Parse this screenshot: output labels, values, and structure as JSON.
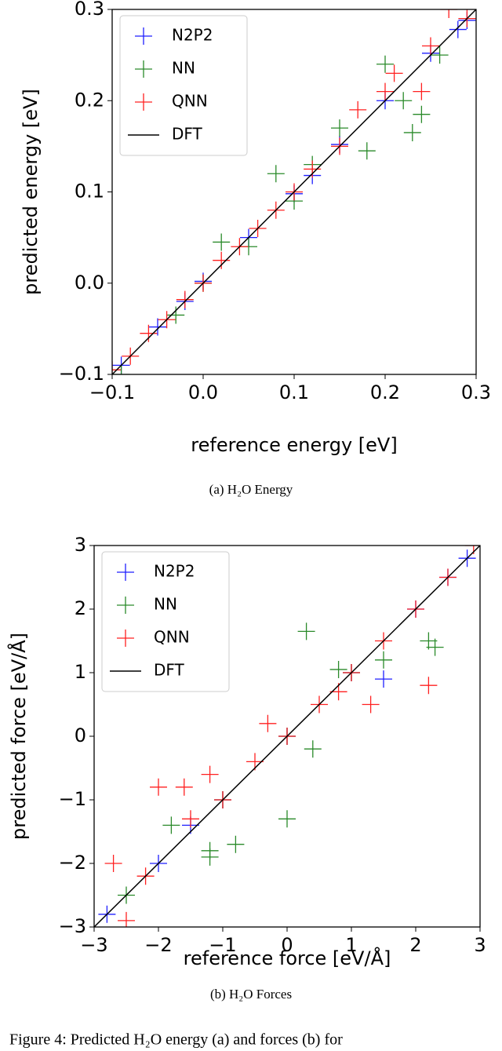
{
  "chart_data": [
    {
      "type": "scatter",
      "x_label": "reference energy [eV]",
      "y_label": "predicted energy [eV]",
      "caption": "(a) H₂O Energy",
      "xlim": [
        -0.1,
        0.3
      ],
      "ylim": [
        -0.1,
        0.3
      ],
      "xticks": [
        {
          "value": -0.1,
          "label": "−0.1"
        },
        {
          "value": 0,
          "label": "0.0"
        },
        0.1,
        0.2,
        0.3
      ],
      "yticks": [
        {
          "value": -0.1,
          "label": "−0.1"
        },
        {
          "value": 0,
          "label": "0.0"
        },
        0.1,
        0.2,
        0.3
      ],
      "legend": "upper left",
      "series": [
        {
          "name": "N2P2",
          "color": "#1f1fff",
          "x": [
            -0.09,
            -0.05,
            -0.02,
            0.0,
            0.05,
            0.1,
            0.12,
            0.15,
            0.2,
            0.25,
            0.28,
            0.29
          ],
          "y": [
            -0.09,
            -0.048,
            -0.02,
            0.002,
            0.05,
            0.098,
            0.118,
            0.152,
            0.2,
            0.252,
            0.278,
            0.288
          ]
        },
        {
          "name": "NN",
          "color": "#2a8a2a",
          "x": [
            -0.09,
            -0.03,
            0.0,
            0.02,
            0.05,
            0.08,
            0.1,
            0.12,
            0.15,
            0.18,
            0.2,
            0.22,
            0.23,
            0.24,
            0.26
          ],
          "y": [
            -0.1,
            -0.035,
            0.0,
            0.045,
            0.04,
            0.12,
            0.09,
            0.13,
            0.17,
            0.145,
            0.24,
            0.2,
            0.165,
            0.185,
            0.25
          ]
        },
        {
          "name": "QNN",
          "color": "#ff2020",
          "x": [
            -0.1,
            -0.08,
            -0.06,
            -0.04,
            -0.02,
            0.0,
            0.02,
            0.04,
            0.06,
            0.08,
            0.1,
            0.12,
            0.15,
            0.17,
            0.2,
            0.21,
            0.24,
            0.25,
            0.27,
            0.29
          ],
          "y": [
            -0.095,
            -0.08,
            -0.055,
            -0.04,
            -0.018,
            0.0,
            0.025,
            0.04,
            0.06,
            0.08,
            0.1,
            0.125,
            0.15,
            0.19,
            0.21,
            0.23,
            0.21,
            0.26,
            0.3,
            0.29
          ]
        },
        {
          "name": "DFT",
          "color": "#000000",
          "type": "line",
          "x": [
            -0.1,
            0.3
          ],
          "y": [
            -0.1,
            0.3
          ]
        }
      ]
    },
    {
      "type": "scatter",
      "x_label": "reference force [eV/Å]",
      "y_label": "predicted force [eV/Å]",
      "caption": "(b) H₂O Forces",
      "xlim": [
        -3,
        3
      ],
      "ylim": [
        -3,
        3
      ],
      "xticks": [
        {
          "value": -3,
          "label": "−3"
        },
        {
          "value": -2,
          "label": "−2"
        },
        {
          "value": -1,
          "label": "−1"
        },
        0,
        1,
        2,
        3
      ],
      "yticks": [
        {
          "value": -3,
          "label": "−3"
        },
        {
          "value": -2,
          "label": "−2"
        },
        {
          "value": -1,
          "label": "−1"
        },
        0,
        1,
        2,
        3
      ],
      "legend": "upper left",
      "series": [
        {
          "name": "N2P2",
          "color": "#1f1fff",
          "x": [
            -2.8,
            -2,
            -1.5,
            -1,
            0,
            1,
            1.5,
            2,
            2.5,
            2.8
          ],
          "y": [
            -2.8,
            -2,
            -1.4,
            -1,
            0,
            1,
            0.9,
            2,
            2.5,
            2.8
          ]
        },
        {
          "name": "NN",
          "color": "#2a8a2a",
          "x": [
            -2.5,
            -1.8,
            -1.2,
            -1.2,
            -1,
            -0.8,
            0,
            0,
            0.4,
            0.3,
            0.8,
            1,
            1.5,
            2.2,
            2.3
          ],
          "y": [
            -2.5,
            -1.4,
            -1.8,
            -1.9,
            -1,
            -1.7,
            -1.3,
            0,
            -0.2,
            1.65,
            1.05,
            1,
            1.2,
            1.5,
            1.4
          ]
        },
        {
          "name": "QNN",
          "color": "#ff2020",
          "x": [
            -2.7,
            -2.5,
            -2.2,
            -2,
            -1.6,
            -1.5,
            -1.2,
            -1,
            -0.5,
            -0.3,
            0,
            0.5,
            0.8,
            1,
            1.3,
            1.5,
            2,
            2.2,
            2.5,
            2.9
          ],
          "y": [
            -2,
            -2.9,
            -2.2,
            -0.8,
            -0.8,
            -1.3,
            -0.6,
            -1,
            -0.4,
            0.2,
            0,
            0.5,
            0.7,
            1,
            0.5,
            1.5,
            2,
            0.8,
            2.5,
            3
          ]
        },
        {
          "name": "DFT",
          "color": "#000000",
          "type": "line",
          "x": [
            -3,
            3
          ],
          "y": [
            -3,
            3
          ]
        }
      ]
    }
  ],
  "figure_caption": "Figure 4: Predicted H₂O energy (a) and forces (b) for"
}
